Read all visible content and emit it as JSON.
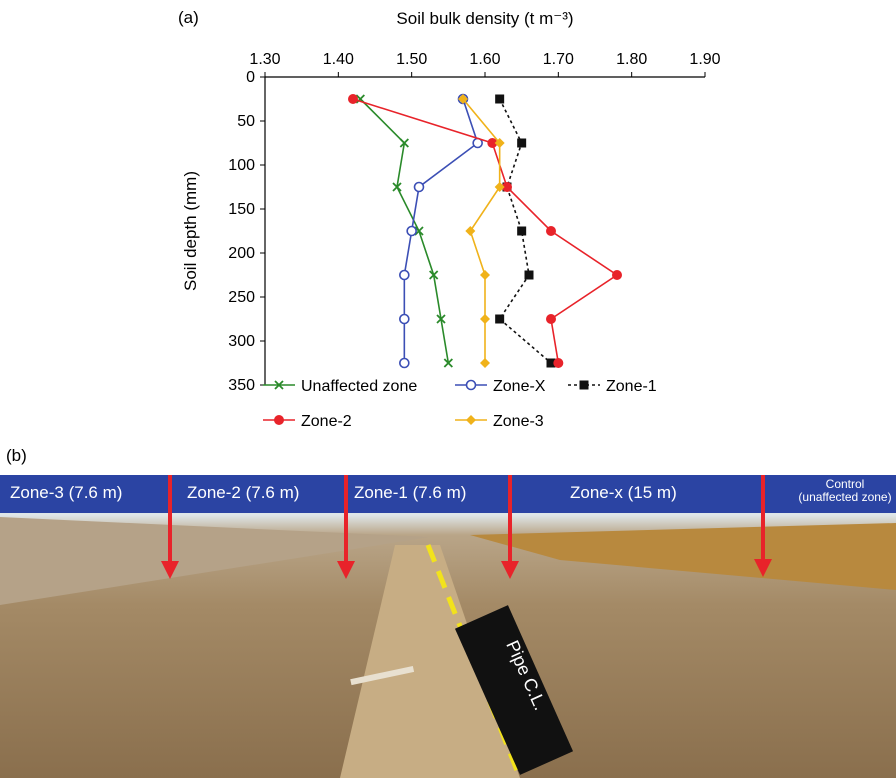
{
  "panel_a_label": "(a)",
  "panel_b_label": "(b)",
  "chart_data": {
    "type": "line",
    "title": "Soil bulk density (t m⁻³)",
    "xlabel": "Soil bulk density (t m⁻³)",
    "ylabel": "Soil depth (mm)",
    "xlim": [
      1.3,
      1.9
    ],
    "ylim": [
      0,
      350
    ],
    "x_ticks": [
      "1.30",
      "1.40",
      "1.50",
      "1.60",
      "1.70",
      "1.80",
      "1.90"
    ],
    "y_ticks": [
      "0",
      "50",
      "100",
      "150",
      "200",
      "250",
      "300",
      "350"
    ],
    "x_axis_position": "top",
    "y_inverted": true,
    "legend_placement": "bottom",
    "series": [
      {
        "name": "Unaffected zone",
        "color": "#2a8a2a",
        "marker": "x",
        "dash": "",
        "points": [
          [
            1.43,
            25
          ],
          [
            1.49,
            75
          ],
          [
            1.48,
            125
          ],
          [
            1.51,
            175
          ],
          [
            1.53,
            225
          ],
          [
            1.54,
            275
          ],
          [
            1.55,
            325
          ]
        ]
      },
      {
        "name": "Zone-X",
        "color": "#3c4fb5",
        "marker": "open-circle",
        "dash": "",
        "points": [
          [
            1.57,
            25
          ],
          [
            1.59,
            75
          ],
          [
            1.51,
            125
          ],
          [
            1.5,
            175
          ],
          [
            1.49,
            225
          ],
          [
            1.49,
            275
          ],
          [
            1.49,
            325
          ]
        ]
      },
      {
        "name": "Zone-1",
        "color": "#111111",
        "marker": "square",
        "dash": "3,3",
        "points": [
          [
            1.62,
            25
          ],
          [
            1.65,
            75
          ],
          [
            1.63,
            125
          ],
          [
            1.65,
            175
          ],
          [
            1.66,
            225
          ],
          [
            1.62,
            275
          ],
          [
            1.69,
            325
          ]
        ]
      },
      {
        "name": "Zone-2",
        "color": "#e8232a",
        "marker": "filled-circle",
        "dash": "",
        "points": [
          [
            1.42,
            25
          ],
          [
            1.61,
            75
          ],
          [
            1.63,
            125
          ],
          [
            1.69,
            175
          ],
          [
            1.78,
            225
          ],
          [
            1.69,
            275
          ],
          [
            1.7,
            325
          ]
        ]
      },
      {
        "name": "Zone-3",
        "color": "#f0b21a",
        "marker": "diamond",
        "dash": "",
        "points": [
          [
            1.57,
            25
          ],
          [
            1.62,
            75
          ],
          [
            1.62,
            125
          ],
          [
            1.58,
            175
          ],
          [
            1.6,
            225
          ],
          [
            1.6,
            275
          ],
          [
            1.6,
            325
          ]
        ]
      }
    ]
  },
  "photo": {
    "zones": [
      "Zone-3 (7.6 m)",
      "Zone-2 (7.6 m)",
      "Zone-1  (7.6 m)",
      "Zone-x (15 m)"
    ],
    "control_line1": "Control",
    "control_line2": "(unaffected zone)",
    "pipe_label": "Pipe C.L.",
    "bar_color": "#2b44a3",
    "arrow_color": "#e8232a",
    "centerline_color": "#f2e21c"
  }
}
